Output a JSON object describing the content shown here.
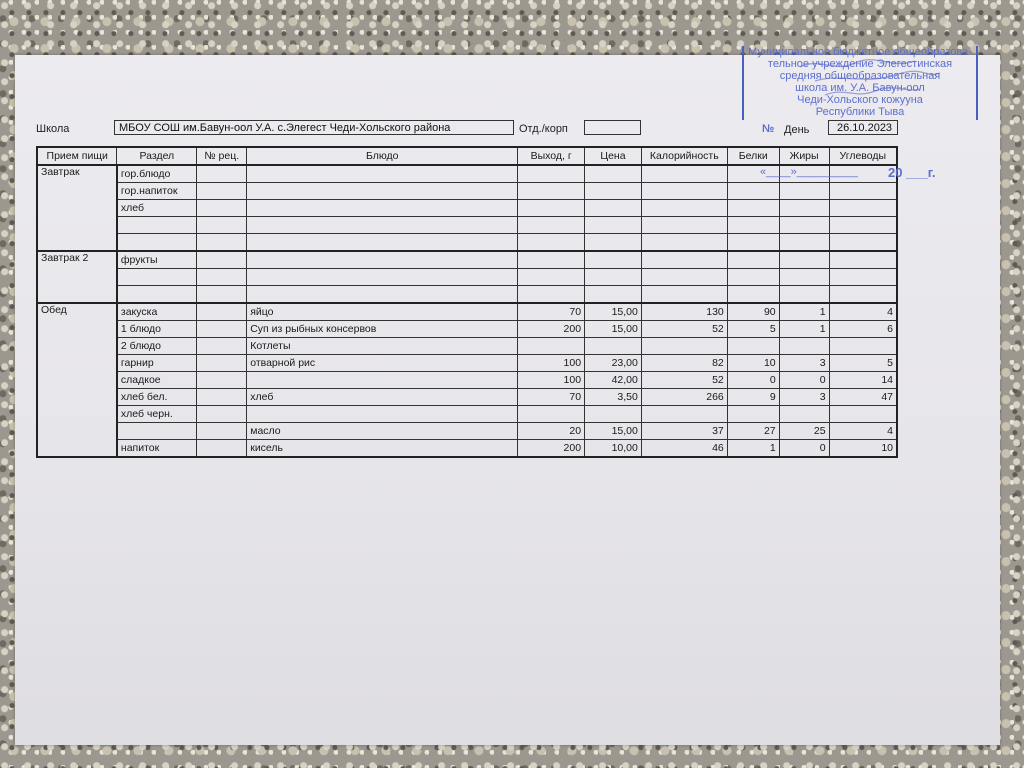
{
  "header": {
    "school_label": "Школа",
    "school_value": "МБОУ СОШ им.Бавун-оол У.А. с.Элегест Чеди-Хольского района",
    "dept_label": "Отд./корп",
    "dept_value": "",
    "day_label": "День",
    "day_value": "26.10.2023"
  },
  "stamp": {
    "lines": [
      "Муниципальное бюджетное общеобразова-",
      "тельное учреждение Элегестинская",
      "средняя общеобразовательная",
      "школа им. У.А. Бавун-оол",
      "Чеди-Хольского кожууна",
      "Республики Тыва"
    ],
    "number_label": "№",
    "date_template": "«____»__________",
    "year_label": "20",
    "year_suffix": "г.",
    "color": "#4a5fc2"
  },
  "table": {
    "columns": [
      "Прием пищи",
      "Раздел",
      "№ рец.",
      "Блюдо",
      "Выход, г",
      "Цена",
      "Калорийность",
      "Белки",
      "Жиры",
      "Углеводы"
    ],
    "groups": [
      {
        "meal": "Завтрак",
        "rows": [
          [
            "гор.блюдо",
            "",
            "",
            "",
            "",
            "",
            "",
            "",
            ""
          ],
          [
            "гор.напиток",
            "",
            "",
            "",
            "",
            "",
            "",
            "",
            ""
          ],
          [
            "хлеб",
            "",
            "",
            "",
            "",
            "",
            "",
            "",
            ""
          ],
          [
            "",
            "",
            "",
            "",
            "",
            "",
            "",
            "",
            ""
          ],
          [
            "",
            "",
            "",
            "",
            "",
            "",
            "",
            "",
            ""
          ]
        ]
      },
      {
        "meal": "Завтрак 2",
        "rows": [
          [
            "фрукты",
            "",
            "",
            "",
            "",
            "",
            "",
            "",
            ""
          ],
          [
            "",
            "",
            "",
            "",
            "",
            "",
            "",
            "",
            ""
          ],
          [
            "",
            "",
            "",
            "",
            "",
            "",
            "",
            "",
            ""
          ]
        ]
      },
      {
        "meal": "Обед",
        "rows": [
          [
            "закуска",
            "",
            "яйцо",
            "70",
            "15,00",
            "130",
            "90",
            "1",
            "4"
          ],
          [
            "1 блюдо",
            "",
            "Суп из рыбных консервов",
            "200",
            "15,00",
            "52",
            "5",
            "1",
            "6"
          ],
          [
            "2 блюдо",
            "",
            "Котлеты",
            "",
            "",
            "",
            "",
            "",
            ""
          ],
          [
            "гарнир",
            "",
            "отварной рис",
            "100",
            "23,00",
            "82",
            "10",
            "3",
            "5"
          ],
          [
            "сладкое",
            "",
            "",
            "100",
            "42,00",
            "52",
            "0",
            "0",
            "14"
          ],
          [
            "хлеб бел.",
            "",
            "хлеб",
            "70",
            "3,50",
            "266",
            "9",
            "3",
            "47"
          ],
          [
            "хлеб черн.",
            "",
            "",
            "",
            "",
            "",
            "",
            "",
            ""
          ],
          [
            "",
            "",
            "масло",
            "20",
            "15,00",
            "37",
            "27",
            "25",
            "4"
          ],
          [
            "напиток",
            "",
            "кисель",
            "200",
            "10,00",
            "46",
            "1",
            "0",
            "10"
          ]
        ]
      }
    ]
  }
}
